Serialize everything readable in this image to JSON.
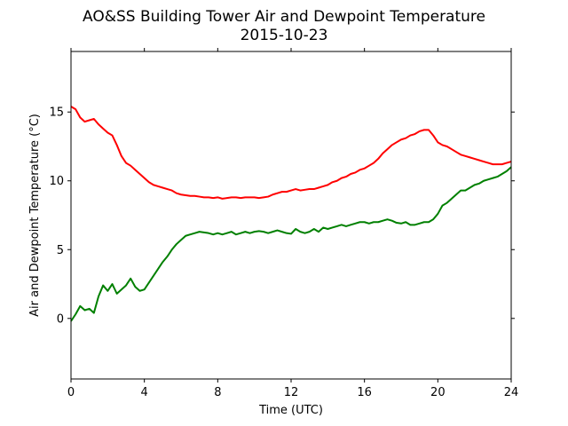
{
  "chart_data": {
    "type": "line",
    "title": "AO&SS Building Tower Air and Dewpoint Temperature",
    "subtitle": "2015-10-23",
    "xlabel": "Time (UTC)",
    "ylabel": "Air and Dewpoint Temperature (°C)",
    "xlim": [
      0,
      24
    ],
    "ylim": [
      -4.4,
      19.4
    ],
    "xticks": [
      0,
      4,
      8,
      12,
      16,
      20,
      24
    ],
    "yticks": [
      0,
      5,
      10,
      15
    ],
    "grid": false,
    "legend": "none",
    "series": [
      {
        "color": "#ff0000",
        "x": [
          0,
          0.25,
          0.5,
          0.75,
          1.0,
          1.25,
          1.5,
          1.75,
          2.0,
          2.25,
          2.5,
          2.75,
          3.0,
          3.25,
          3.5,
          3.75,
          4.0,
          4.25,
          4.5,
          4.75,
          5.0,
          5.25,
          5.5,
          5.75,
          6.0,
          6.25,
          6.5,
          6.75,
          7.0,
          7.25,
          7.5,
          7.75,
          8.0,
          8.25,
          8.5,
          8.75,
          9.0,
          9.25,
          9.5,
          9.75,
          10.0,
          10.25,
          10.5,
          10.75,
          11.0,
          11.25,
          11.5,
          11.75,
          12.0,
          12.25,
          12.5,
          12.75,
          13.0,
          13.25,
          13.5,
          13.75,
          14.0,
          14.25,
          14.5,
          14.75,
          15.0,
          15.25,
          15.5,
          15.75,
          16.0,
          16.25,
          16.5,
          16.75,
          17.0,
          17.25,
          17.5,
          17.75,
          18.0,
          18.25,
          18.5,
          18.75,
          19.0,
          19.25,
          19.5,
          19.75,
          20.0,
          20.25,
          20.5,
          20.75,
          21.0,
          21.25,
          21.5,
          21.75,
          22.0,
          22.25,
          22.5,
          22.75,
          23.0,
          23.25,
          23.5,
          23.75,
          24.0
        ],
        "y": [
          15.4,
          15.2,
          14.6,
          14.3,
          14.4,
          14.5,
          14.1,
          13.8,
          13.5,
          13.3,
          12.6,
          11.8,
          11.3,
          11.1,
          10.8,
          10.5,
          10.2,
          9.9,
          9.7,
          9.6,
          9.5,
          9.4,
          9.3,
          9.1,
          9.0,
          8.95,
          8.9,
          8.9,
          8.85,
          8.8,
          8.8,
          8.75,
          8.8,
          8.7,
          8.75,
          8.8,
          8.8,
          8.75,
          8.8,
          8.8,
          8.8,
          8.75,
          8.8,
          8.85,
          9.0,
          9.1,
          9.2,
          9.2,
          9.3,
          9.4,
          9.3,
          9.35,
          9.4,
          9.4,
          9.5,
          9.6,
          9.7,
          9.9,
          10.0,
          10.2,
          10.3,
          10.5,
          10.6,
          10.8,
          10.9,
          11.1,
          11.3,
          11.6,
          12.0,
          12.3,
          12.6,
          12.8,
          13.0,
          13.1,
          13.3,
          13.4,
          13.6,
          13.7,
          13.7,
          13.3,
          12.8,
          12.6,
          12.5,
          12.3,
          12.1,
          11.9,
          11.8,
          11.7,
          11.6,
          11.5,
          11.4,
          11.3,
          11.2,
          11.2,
          11.2,
          11.3,
          11.4
        ]
      },
      {
        "color": "#008000",
        "x": [
          0,
          0.25,
          0.5,
          0.75,
          1.0,
          1.25,
          1.5,
          1.75,
          2.0,
          2.25,
          2.5,
          2.75,
          3.0,
          3.25,
          3.5,
          3.75,
          4.0,
          4.25,
          4.5,
          4.75,
          5.0,
          5.25,
          5.5,
          5.75,
          6.0,
          6.25,
          6.5,
          6.75,
          7.0,
          7.25,
          7.5,
          7.75,
          8.0,
          8.25,
          8.5,
          8.75,
          9.0,
          9.25,
          9.5,
          9.75,
          10.0,
          10.25,
          10.5,
          10.75,
          11.0,
          11.25,
          11.5,
          11.75,
          12.0,
          12.25,
          12.5,
          12.75,
          13.0,
          13.25,
          13.5,
          13.75,
          14.0,
          14.25,
          14.5,
          14.75,
          15.0,
          15.25,
          15.5,
          15.75,
          16.0,
          16.25,
          16.5,
          16.75,
          17.0,
          17.25,
          17.5,
          17.75,
          18.0,
          18.25,
          18.5,
          18.75,
          19.0,
          19.25,
          19.5,
          19.75,
          20.0,
          20.25,
          20.5,
          20.75,
          21.0,
          21.25,
          21.5,
          21.75,
          22.0,
          22.25,
          22.5,
          22.75,
          23.0,
          23.25,
          23.5,
          23.75,
          24.0
        ],
        "y": [
          -0.2,
          0.3,
          0.9,
          0.6,
          0.7,
          0.4,
          1.6,
          2.4,
          2.0,
          2.5,
          1.8,
          2.1,
          2.4,
          2.9,
          2.3,
          2.0,
          2.1,
          2.6,
          3.1,
          3.6,
          4.1,
          4.5,
          5.0,
          5.4,
          5.7,
          6.0,
          6.1,
          6.2,
          6.3,
          6.25,
          6.2,
          6.1,
          6.2,
          6.1,
          6.2,
          6.3,
          6.1,
          6.2,
          6.3,
          6.2,
          6.3,
          6.35,
          6.3,
          6.2,
          6.3,
          6.4,
          6.3,
          6.2,
          6.15,
          6.5,
          6.3,
          6.2,
          6.3,
          6.5,
          6.3,
          6.6,
          6.5,
          6.6,
          6.7,
          6.8,
          6.7,
          6.8,
          6.9,
          7.0,
          7.0,
          6.9,
          7.0,
          7.0,
          7.1,
          7.2,
          7.1,
          6.95,
          6.9,
          7.0,
          6.8,
          6.8,
          6.9,
          7.0,
          7.0,
          7.2,
          7.6,
          8.2,
          8.4,
          8.7,
          9.0,
          9.3,
          9.3,
          9.5,
          9.7,
          9.8,
          10.0,
          10.1,
          10.2,
          10.3,
          10.5,
          10.7,
          11.0
        ]
      }
    ]
  }
}
